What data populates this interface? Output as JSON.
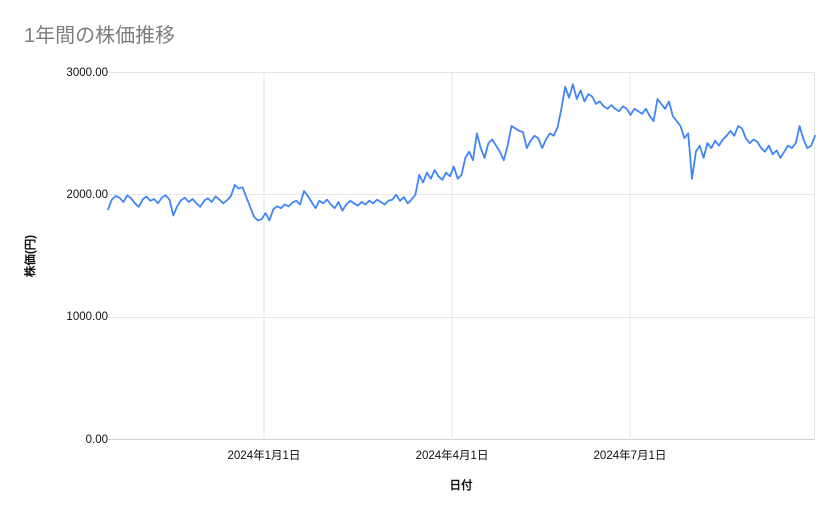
{
  "chart_data": {
    "type": "line",
    "title": "1年間の株価推移",
    "xlabel": "日付",
    "ylabel": "株価(円)",
    "ylim": [
      0,
      3000
    ],
    "grid": true,
    "legend": "none",
    "line_color": "#4285f4",
    "grid_color": "#e6e6e6",
    "axis_color": "#d0d0d0",
    "yticks": [
      {
        "value": 0,
        "label": "0.00"
      },
      {
        "value": 1000,
        "label": "1000.00"
      },
      {
        "value": 2000,
        "label": "2000.00"
      },
      {
        "value": 3000,
        "label": "3000.00"
      }
    ],
    "xticks": [
      {
        "pos": 0.2206,
        "label": "2024年1月1日"
      },
      {
        "pos": 0.4866,
        "label": "2024年4月1日"
      },
      {
        "pos": 0.7383,
        "label": "2024年7月1日"
      }
    ],
    "vgrid_positions": [
      0.2206,
      0.4866,
      0.7383,
      1.0
    ],
    "series": [
      {
        "name": "株価",
        "values": [
          1880,
          1960,
          1990,
          1975,
          1940,
          1995,
          1970,
          1930,
          1900,
          1960,
          1985,
          1950,
          1965,
          1930,
          1975,
          1995,
          1960,
          1830,
          1905,
          1955,
          1975,
          1940,
          1965,
          1930,
          1900,
          1950,
          1970,
          1940,
          1985,
          1960,
          1930,
          1955,
          1990,
          2080,
          2050,
          2060,
          1980,
          1900,
          1820,
          1790,
          1800,
          1850,
          1790,
          1880,
          1905,
          1890,
          1920,
          1905,
          1935,
          1950,
          1920,
          2030,
          1990,
          1940,
          1890,
          1950,
          1930,
          1960,
          1920,
          1890,
          1940,
          1870,
          1920,
          1950,
          1930,
          1910,
          1940,
          1920,
          1950,
          1930,
          1960,
          1940,
          1920,
          1950,
          1960,
          2000,
          1950,
          1980,
          1930,
          1960,
          2000,
          2160,
          2100,
          2180,
          2130,
          2200,
          2150,
          2120,
          2180,
          2150,
          2230,
          2130,
          2160,
          2300,
          2350,
          2280,
          2500,
          2380,
          2300,
          2420,
          2450,
          2400,
          2350,
          2280,
          2400,
          2560,
          2540,
          2520,
          2510,
          2380,
          2440,
          2480,
          2460,
          2380,
          2450,
          2500,
          2480,
          2550,
          2700,
          2880,
          2790,
          2900,
          2780,
          2850,
          2760,
          2820,
          2800,
          2740,
          2760,
          2720,
          2700,
          2730,
          2700,
          2680,
          2720,
          2700,
          2650,
          2700,
          2680,
          2660,
          2700,
          2640,
          2600,
          2780,
          2740,
          2700,
          2760,
          2640,
          2600,
          2560,
          2460,
          2500,
          2130,
          2350,
          2400,
          2300,
          2420,
          2380,
          2440,
          2400,
          2450,
          2480,
          2520,
          2480,
          2560,
          2540,
          2460,
          2420,
          2450,
          2430,
          2380,
          2350,
          2400,
          2330,
          2360,
          2300,
          2350,
          2400,
          2380,
          2420,
          2560,
          2450,
          2380,
          2400,
          2480
        ]
      }
    ]
  }
}
